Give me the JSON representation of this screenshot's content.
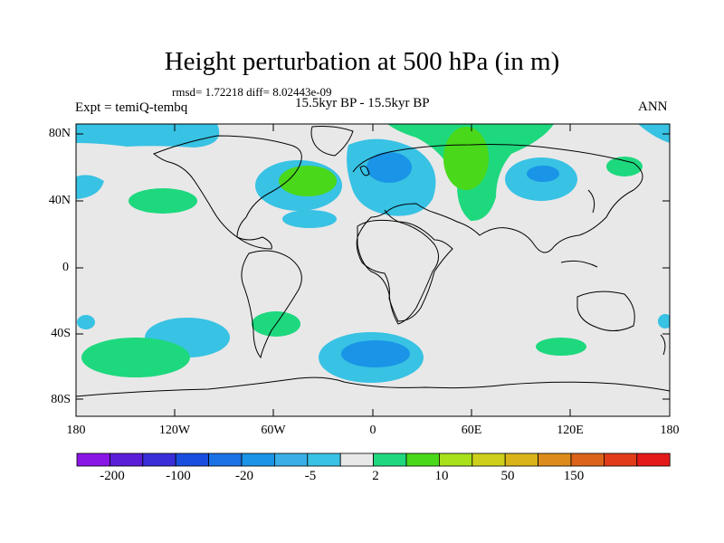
{
  "title": "Height perturbation at 500 hPa (in m)",
  "stats": "rmsd= 1.72218 diff= 8.02443e-09",
  "left_label": "Expt = temiQ-tembq",
  "center_label": "15.5kyr BP - 15.5kyr BP",
  "right_label": "ANN",
  "y_ticks": [
    "80N",
    "40N",
    "0",
    "40S",
    "80S"
  ],
  "x_ticks": [
    "180",
    "120W",
    "60W",
    "0",
    "60E",
    "120E",
    "180"
  ],
  "colorbar_labels": [
    "-200",
    "-100",
    "-20",
    "-5",
    "2",
    "10",
    "50",
    "150"
  ],
  "colorbar_colors": [
    "#8a16e6",
    "#5a1ed8",
    "#3a2ed8",
    "#1a4ee0",
    "#1a72e6",
    "#1a94e6",
    "#3aaee6",
    "#38c2e4",
    "#e8e8e8",
    "#1ed87e",
    "#4ad81a",
    "#a8e01a",
    "#cdd01a",
    "#d8b41a",
    "#dc8c1a",
    "#dc641a",
    "#e03c1a",
    "#e41a1a"
  ],
  "colors": {
    "land_bg": "#e8e8e8",
    "light_blue": "#38c2e4",
    "medium_blue": "#1a94e6",
    "light_green": "#1ed87e",
    "medium_green": "#4ad81a"
  }
}
